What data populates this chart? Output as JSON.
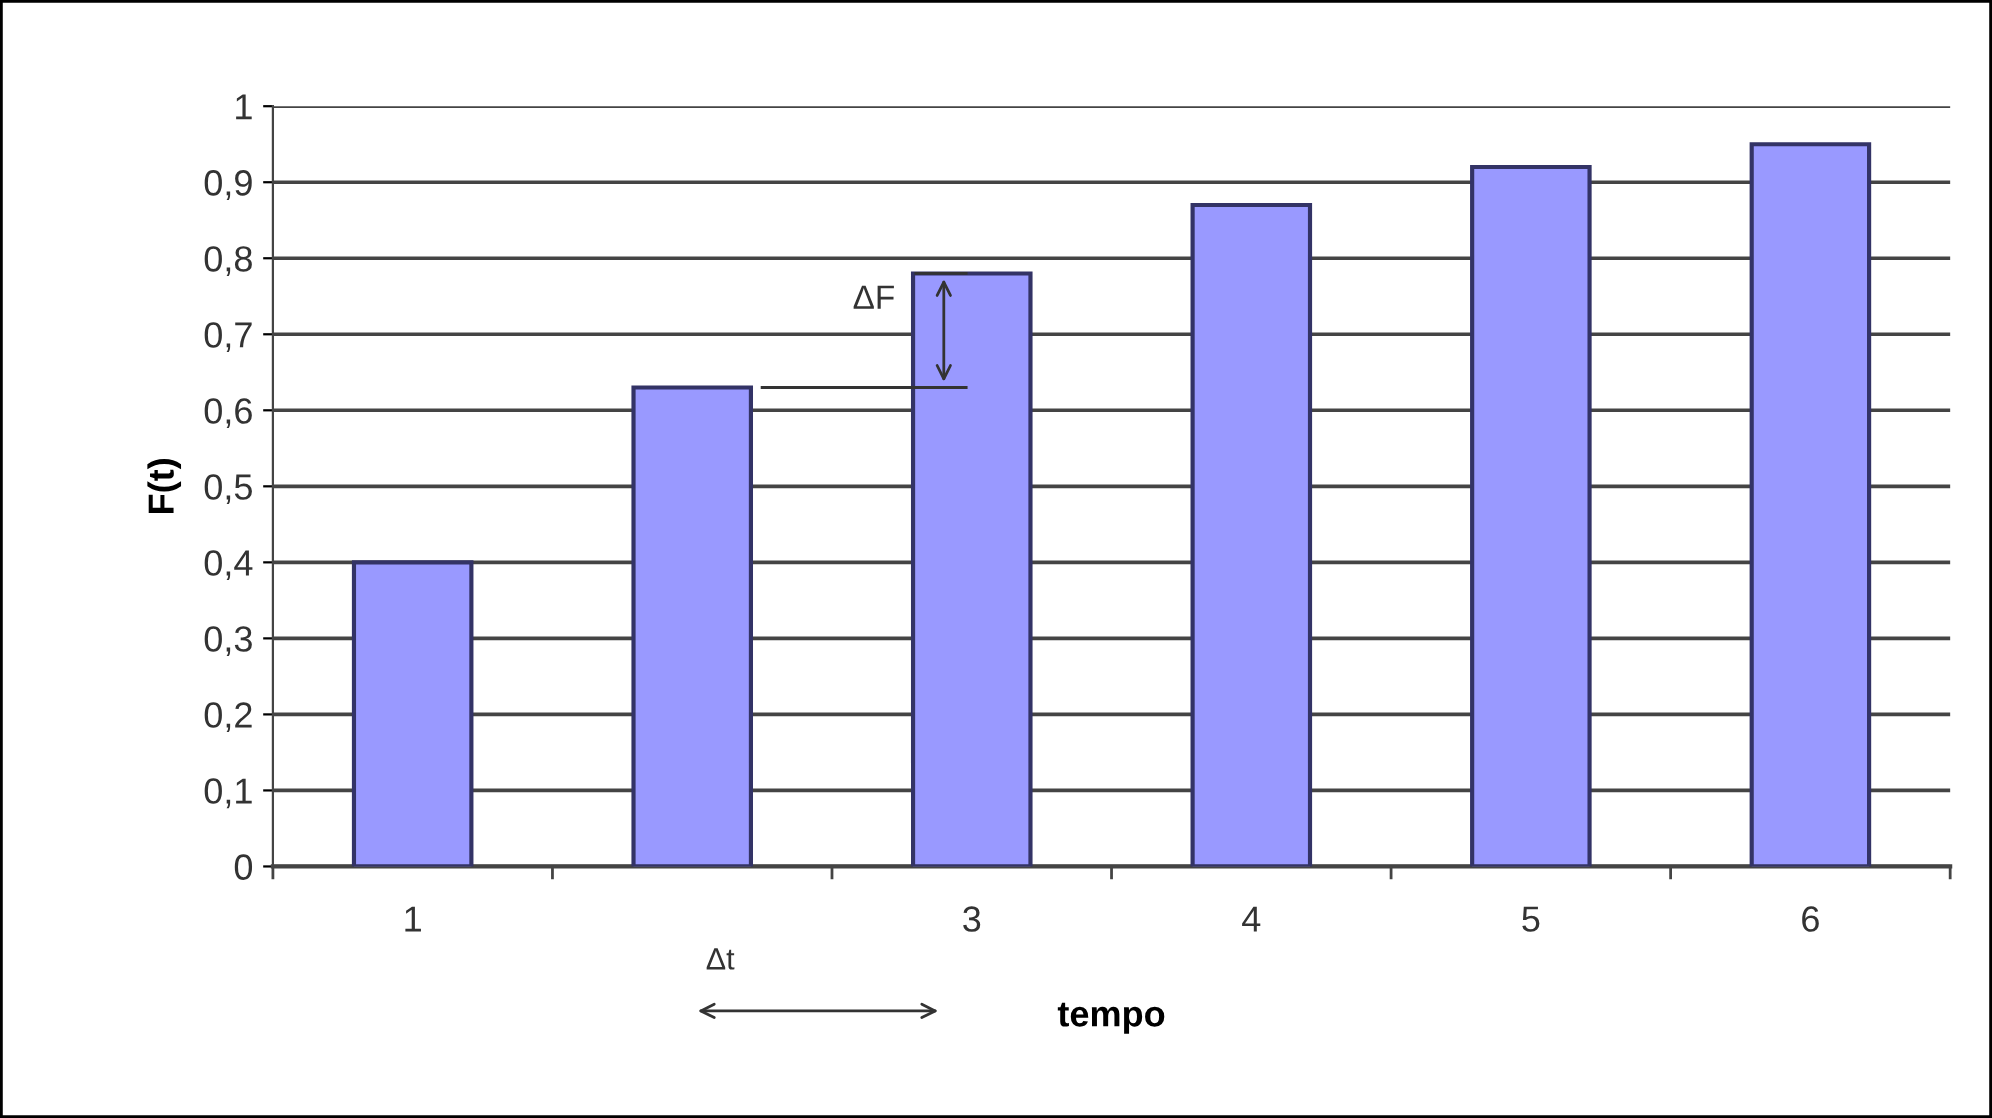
{
  "chart_data": {
    "type": "bar",
    "xlabel": "tempo",
    "ylabel": "F(t)",
    "categories": [
      "1",
      null,
      "3",
      "4",
      "5",
      "6"
    ],
    "values": [
      0.4,
      0.63,
      0.78,
      0.87,
      0.92,
      0.95
    ],
    "color": "#9999ff",
    "ylim": [
      0,
      1
    ],
    "yticks": [
      0,
      {
        "value": 0.1,
        "label": "0,1"
      },
      {
        "value": 0.2,
        "label": "0,2"
      },
      {
        "value": 0.3,
        "label": "0,3"
      },
      {
        "value": 0.4,
        "label": "0,4"
      },
      {
        "value": 0.5,
        "label": "0,5"
      },
      {
        "value": 0.6,
        "label": "0,6"
      },
      {
        "value": 0.7,
        "label": "0,7"
      },
      {
        "value": 0.8,
        "label": "0,8"
      },
      {
        "value": 0.9,
        "label": "0,9"
      },
      1
    ],
    "grid": "y",
    "annotations": [
      "ΔF",
      "Δt"
    ]
  }
}
